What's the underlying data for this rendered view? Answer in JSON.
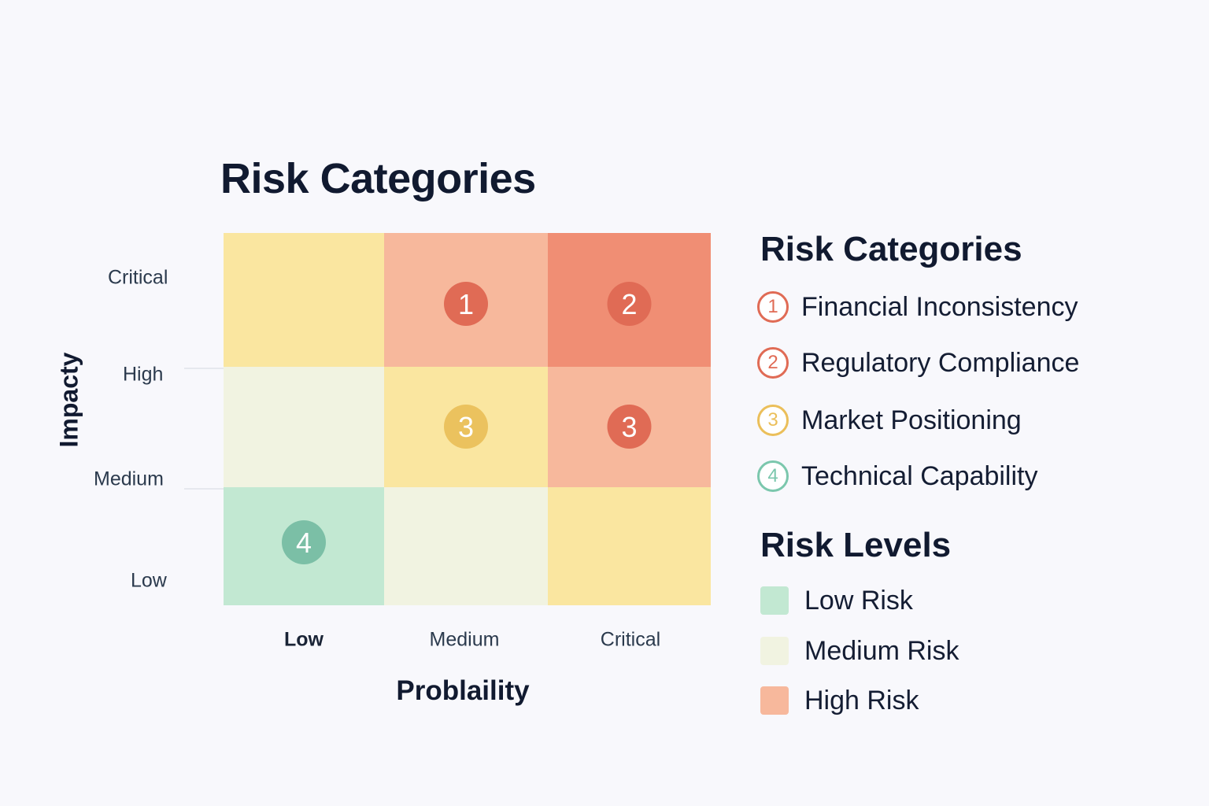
{
  "chart_data": {
    "type": "heatmap",
    "title": "Risk Categories",
    "xlabel": "Problaility",
    "ylabel": "Impacty",
    "x_categories": [
      "Low",
      "Medium",
      "Critical"
    ],
    "y_categories": [
      "Low",
      "Medium",
      "High",
      "Critical"
    ],
    "cells": [
      {
        "x": "Low",
        "y": "Critical",
        "color": "#fae6a0"
      },
      {
        "x": "Medium",
        "y": "Critical",
        "color": "#f7b89c"
      },
      {
        "x": "Critical",
        "y": "Critical",
        "color": "#f08e74"
      },
      {
        "x": "Low",
        "y": "High",
        "color": "#f1f3e1"
      },
      {
        "x": "Medium",
        "y": "High",
        "color": "#fae6a0"
      },
      {
        "x": "Critical",
        "y": "High",
        "color": "#f7b89c"
      },
      {
        "x": "Low",
        "y": "Low",
        "color": "#c2e8d2"
      },
      {
        "x": "Medium",
        "y": "Low",
        "color": "#f1f3e1"
      },
      {
        "x": "Critical",
        "y": "Low",
        "color": "#fae6a0"
      }
    ],
    "markers": [
      {
        "label": "1",
        "x": "Medium",
        "y": "Critical",
        "category": 1,
        "color": "#e06b55"
      },
      {
        "label": "2",
        "x": "Critical",
        "y": "Critical",
        "category": 2,
        "color": "#e06b55"
      },
      {
        "label": "3",
        "x": "Medium",
        "y": "High",
        "category": 3,
        "color": "#ebc25e"
      },
      {
        "label": "3",
        "x": "Critical",
        "y": "High",
        "category": 3,
        "color": "#e06b55"
      },
      {
        "label": "4",
        "x": "Low",
        "y": "Low",
        "category": 4,
        "color": "#7bbfa6"
      }
    ]
  },
  "legend": {
    "categories_title": "Risk Categories",
    "categories": [
      {
        "number": "1",
        "label": "Financial Inconsistency",
        "color": "#e06b55"
      },
      {
        "number": "2",
        "label": "Regulatory Compliance",
        "color": "#e06b55"
      },
      {
        "number": "3",
        "label": "Market Positioning",
        "color": "#ebbf5a"
      },
      {
        "number": "4",
        "label": "Technical Capability",
        "color": "#7bc7ad"
      }
    ],
    "levels_title": "Risk Levels",
    "levels": [
      {
        "label": "Low Risk",
        "color": "#c2e8d2"
      },
      {
        "label": "Medium Risk",
        "color": "#f1f3e1"
      },
      {
        "label": "High Risk",
        "color": "#f7b89c"
      }
    ]
  }
}
